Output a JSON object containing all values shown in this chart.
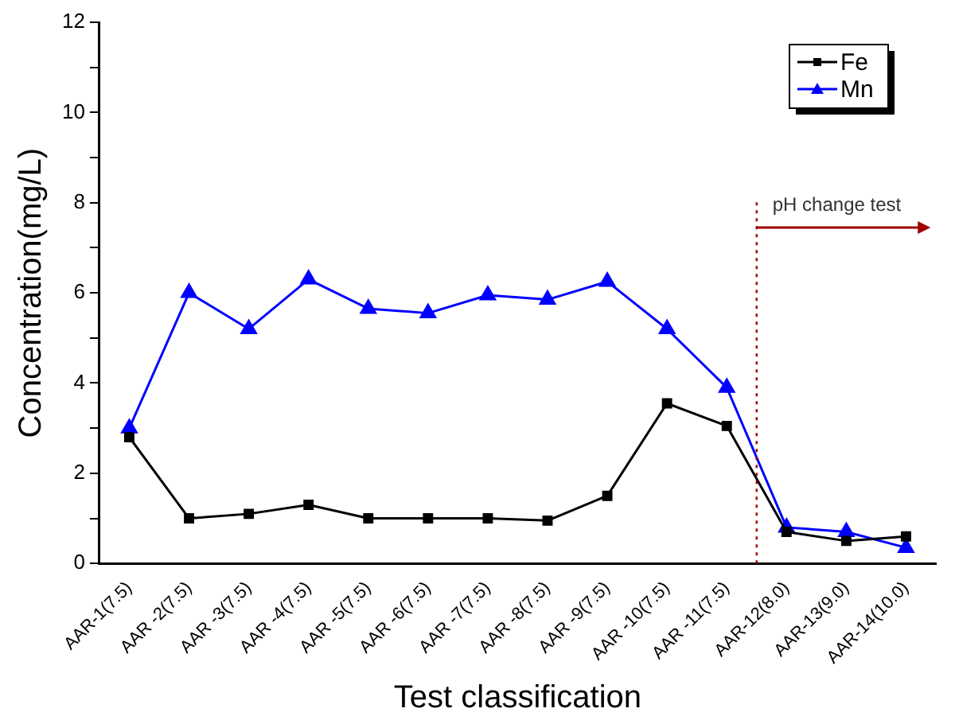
{
  "chart_data": {
    "type": "line",
    "xlabel": "Test classification",
    "ylabel": "Concentration(mg/L)",
    "categories": [
      "AAR-1(7.5)",
      "AAR -2(7.5)",
      "AAR -3(7.5)",
      "AAR -4(7.5)",
      "AAR -5(7.5)",
      "AAR -6(7.5)",
      "AAR -7(7.5)",
      "AAR -8(7.5)",
      "AAR -9(7.5)",
      "AAR -10(7.5)",
      "AAR -11(7.5)",
      "AAR-12(8.0)",
      "AAR-13(9.0)",
      "AAR-14(10.0)"
    ],
    "series": [
      {
        "name": "Fe",
        "color": "#000000",
        "marker": "square",
        "values": [
          2.8,
          1.0,
          1.1,
          1.3,
          1.0,
          1.0,
          1.0,
          0.95,
          1.5,
          3.55,
          3.05,
          0.7,
          0.5,
          0.6
        ]
      },
      {
        "name": "Mn",
        "color": "#0000ff",
        "marker": "triangle",
        "values": [
          3.0,
          6.0,
          5.2,
          6.3,
          5.65,
          5.55,
          5.95,
          5.85,
          6.25,
          5.2,
          3.9,
          0.8,
          0.7,
          0.35
        ]
      }
    ],
    "ylim": [
      0,
      12
    ],
    "yticks": [
      0,
      {
        "value": 1,
        "label": null
      },
      2,
      {
        "value": 3,
        "label": null
      },
      4,
      {
        "value": 5,
        "label": null
      },
      6,
      {
        "value": 7,
        "label": null
      },
      8,
      {
        "value": 9,
        "label": null
      },
      10,
      {
        "value": 11,
        "label": null
      },
      12
    ],
    "annotations": [
      "pH change test"
    ],
    "grid": false,
    "legend": "top right",
    "line_style": "solid"
  }
}
